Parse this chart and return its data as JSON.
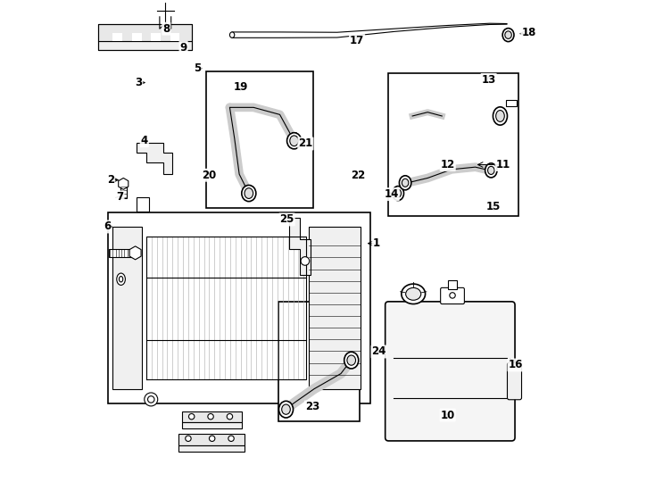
{
  "bg_color": "#ffffff",
  "line_color": "#000000",
  "label_color": "#000000",
  "figsize": [
    7.34,
    5.4
  ],
  "dpi": 100
}
